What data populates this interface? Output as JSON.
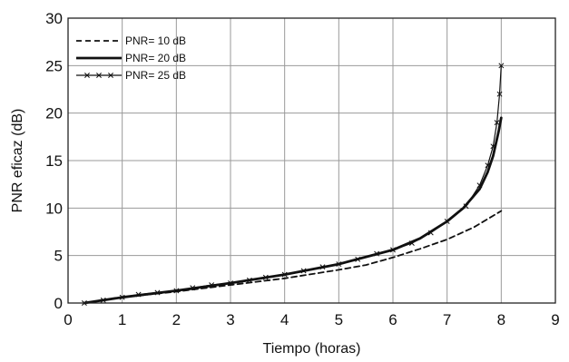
{
  "chart_data": {
    "type": "line",
    "title": "",
    "xlabel": "Tiempo (horas)",
    "ylabel": "PNR eficaz (dB)",
    "xlim": [
      0,
      9
    ],
    "ylim": [
      0,
      30
    ],
    "x_ticks": [
      "0",
      "1",
      "2",
      "3",
      "4",
      "5",
      "6",
      "7",
      "8",
      "9"
    ],
    "y_ticks": [
      "0",
      "5",
      "10",
      "15",
      "20",
      "25",
      "30"
    ],
    "grid": true,
    "legend_position": "top-left",
    "series": [
      {
        "name": "PNR= 10 dB",
        "style": "dashed",
        "marker": "none",
        "x": [
          0.3,
          1.0,
          2.0,
          3.0,
          4.0,
          5.0,
          5.5,
          6.0,
          6.5,
          7.0,
          7.5,
          8.0
        ],
        "y": [
          0.0,
          0.6,
          1.2,
          1.9,
          2.6,
          3.5,
          4.0,
          4.8,
          5.7,
          6.7,
          8.0,
          9.7
        ]
      },
      {
        "name": "PNR= 20 dB",
        "style": "solid-thick",
        "marker": "none",
        "x": [
          0.3,
          1.0,
          2.0,
          3.0,
          4.0,
          5.0,
          6.0,
          6.5,
          7.0,
          7.3,
          7.6,
          7.75,
          7.85,
          7.95,
          8.0
        ],
        "y": [
          0.0,
          0.6,
          1.3,
          2.1,
          3.0,
          4.1,
          5.6,
          6.8,
          8.6,
          10.0,
          12.0,
          13.8,
          15.5,
          18.0,
          19.5
        ]
      },
      {
        "name": "PNR= 25 dB",
        "style": "solid-thin",
        "marker": "x",
        "x": [
          0.3,
          0.65,
          1.0,
          1.3,
          1.65,
          2.0,
          2.3,
          2.65,
          3.0,
          3.35,
          3.65,
          4.0,
          4.35,
          4.7,
          5.0,
          5.35,
          5.7,
          6.0,
          6.35,
          6.7,
          7.0,
          7.35,
          7.6,
          7.75,
          7.85,
          7.92,
          7.97,
          8.0
        ],
        "y": [
          0.0,
          0.3,
          0.6,
          0.9,
          1.1,
          1.3,
          1.6,
          1.9,
          2.1,
          2.4,
          2.7,
          3.0,
          3.4,
          3.8,
          4.1,
          4.6,
          5.2,
          5.6,
          6.3,
          7.4,
          8.6,
          10.2,
          12.4,
          14.5,
          16.5,
          19.0,
          22.0,
          25.0
        ]
      }
    ]
  }
}
